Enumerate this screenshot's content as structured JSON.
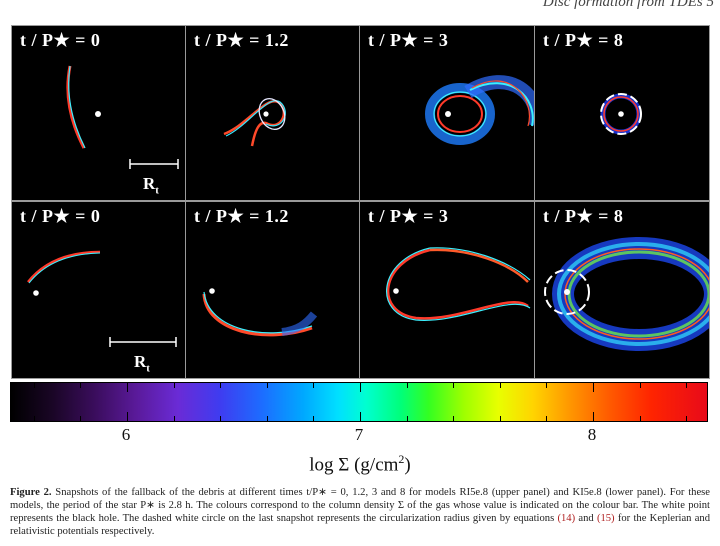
{
  "running_head": "Disc formation from TDEs    5",
  "figure": {
    "rows": [
      {
        "model": "RI5e.8",
        "panels": [
          {
            "label": "t / P★ = 0"
          },
          {
            "label": "t / P★ = 1.2"
          },
          {
            "label": "t / P★ = 3"
          },
          {
            "label": "t / P★ = 8"
          }
        ]
      },
      {
        "model": "KI5e.8",
        "panels": [
          {
            "label": "t / P★ = 0"
          },
          {
            "label": "t / P★ = 1.2"
          },
          {
            "label": "t / P★ = 3"
          },
          {
            "label": "t / P★ = 8"
          }
        ]
      }
    ],
    "scale_bar_label": "R",
    "scale_bar_sub": "t",
    "colorbar": {
      "tick_labels": [
        "6",
        "7",
        "8"
      ],
      "label_main": "log Σ  (g/cm",
      "label_sup": "2",
      "label_end": ")"
    }
  },
  "caption": {
    "figure_label": "Figure 2.",
    "text_1": " Snapshots of the fallback of the debris at different times t/P∗ = 0, 1.2, 3 and 8 for models RI5e.8 (upper panel) and KI5e.8 (lower panel). For these models, the period of the star P∗ is 2.8 h. The colours correspond to the column density Σ of the gas whose value is indicated on the colour bar. The white point represents the black hole. The dashed white circle on the last snapshot represents the circularization radius given by equations ",
    "ref_1": "(14)",
    "text_2": " and ",
    "ref_2": "(15)",
    "text_3": " for the Keplerian and relativistic potentials respectively."
  }
}
